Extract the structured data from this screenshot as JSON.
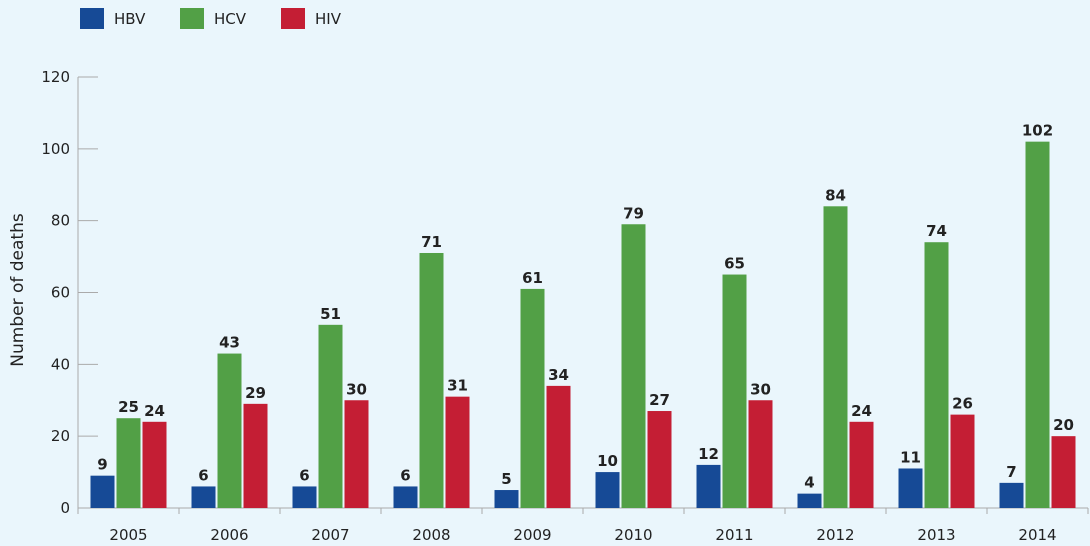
{
  "chart_data": {
    "type": "bar",
    "title": "",
    "xlabel": "",
    "ylabel": "Number of deaths",
    "ylim": [
      0,
      120
    ],
    "yticks": [
      0,
      20,
      40,
      60,
      80,
      100,
      120
    ],
    "categories": [
      "2005",
      "2006",
      "2007",
      "2008",
      "2009",
      "2010",
      "2011",
      "2012",
      "2013",
      "2014"
    ],
    "series": [
      {
        "name": "HBV",
        "color": "#164a96",
        "values": [
          9,
          6,
          6,
          6,
          5,
          10,
          12,
          4,
          11,
          7
        ]
      },
      {
        "name": "HCV",
        "color": "#52a046",
        "values": [
          25,
          43,
          51,
          71,
          61,
          79,
          65,
          84,
          74,
          102
        ]
      },
      {
        "name": "HIV",
        "color": "#c41e34",
        "values": [
          24,
          29,
          30,
          31,
          34,
          27,
          30,
          24,
          26,
          20
        ]
      }
    ],
    "legend_position": "top-left",
    "grid": false,
    "background": "#eaf6fc"
  }
}
